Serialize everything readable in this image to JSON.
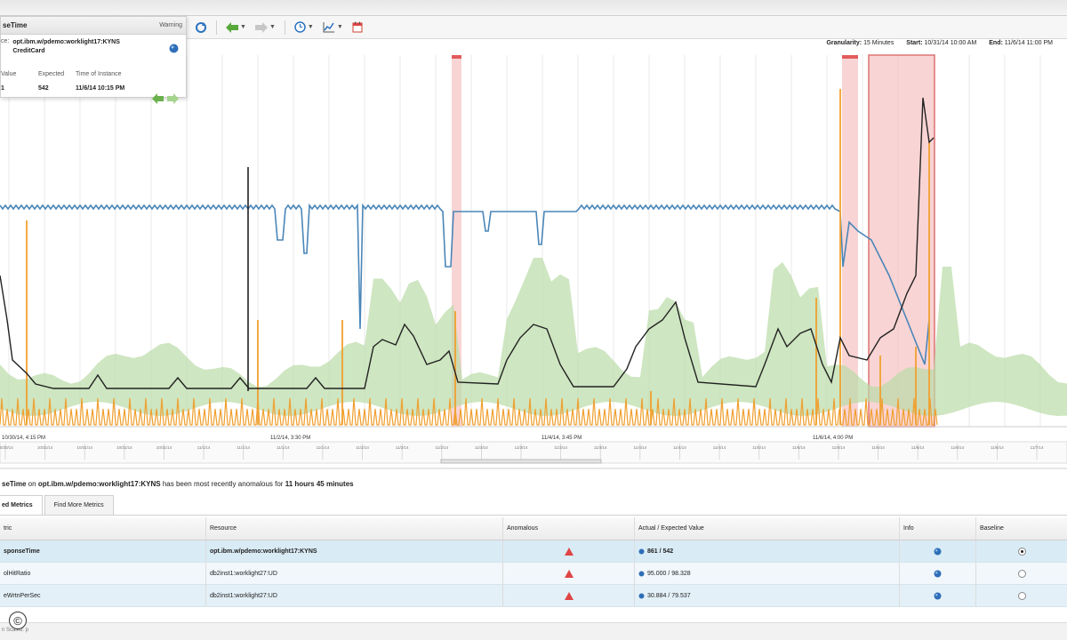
{
  "popup": {
    "title": "seTime",
    "status": "Warning",
    "resource_label": "ce:",
    "resource_line1": "opt.ibm.w/pdemo:worklight17:KYNS",
    "resource_line2": "CreditCard",
    "headers": [
      "Value",
      "Expected",
      "Time of Instance"
    ],
    "values": [
      "1",
      "542",
      "11/6/14 10:15 PM"
    ]
  },
  "toolbar": {
    "icons": [
      "refresh-icon",
      "back-icon",
      "forward-icon",
      "clock-icon",
      "chart-icon",
      "calendar-icon"
    ]
  },
  "granularity": {
    "granularity_label": "Granularity:",
    "granularity_value": "15 Minutes",
    "start_label": "Start:",
    "start_value": "10/31/14 10:00 AM",
    "end_label": "End:",
    "end_value": "11/6/14 11:00 PM"
  },
  "chart_data": {
    "type": "line",
    "title": "",
    "xlabel": "",
    "ylabel": "",
    "major_tick_labels": [
      "10/30/14, 4:15 PM",
      "11/2/14, 3:30 PM",
      "11/4/14, 3:45 PM",
      "11/6/14, 4:00 PM"
    ],
    "minor_tick_labels": [
      "10/30/14",
      "10/31/14",
      "10/31/14",
      "10/31/14",
      "10/31/14",
      "11/1/14",
      "11/1/14",
      "11/1/14",
      "11/1/14",
      "11/2/14",
      "11/2/14",
      "11/2/14",
      "11/3/14",
      "11/3/14",
      "11/3/14",
      "11/3/14",
      "11/4/14",
      "11/4/14",
      "11/4/14",
      "11/5/14",
      "11/5/14",
      "11/5/14",
      "11/6/14",
      "11/6/14",
      "11/6/14",
      "11/6/14",
      "11/7/14"
    ],
    "grid": true,
    "anomaly_highlight_color": "#f7c6c6",
    "series": [
      {
        "color": "#4a86b8"
      },
      {
        "color": "#222222"
      },
      {
        "color": "#f0a030"
      },
      {
        "color": "#b9dca6"
      }
    ]
  },
  "status": {
    "metric": "seTime",
    "on": "on",
    "resource": "opt.ibm.w/pdemo:worklight17:KYNS",
    "text": "has been most recently anomalous for",
    "duration": "11 hours 45 minutes"
  },
  "tabs": [
    "ed Metrics",
    "Find More Metrics"
  ],
  "table": {
    "headers": [
      "tric",
      "Resource",
      "Anomalous",
      "Actual / Expected Value",
      "Info",
      "Baseline"
    ],
    "rows": [
      {
        "metric": "sponseTime",
        "resource": "opt.ibm.w/pdemo:worklight17:KYNS",
        "value": "861 / 542",
        "baseline": true
      },
      {
        "metric": "olHitRatio",
        "resource": "db2inst1:worklight27:UD",
        "value": "95.000 / 98.328",
        "baseline": false
      },
      {
        "metric": "eWrtnPerSec",
        "resource": "db2inst1:worklight27:UD",
        "value": "30.884 / 79.537",
        "baseline": false
      }
    ]
  },
  "footer": {
    "text": "n Scaled: p"
  },
  "copyright": "©",
  "colors": {
    "warning": "#e04545",
    "info": "#2f6fb8",
    "nav": "#6ab04c"
  }
}
